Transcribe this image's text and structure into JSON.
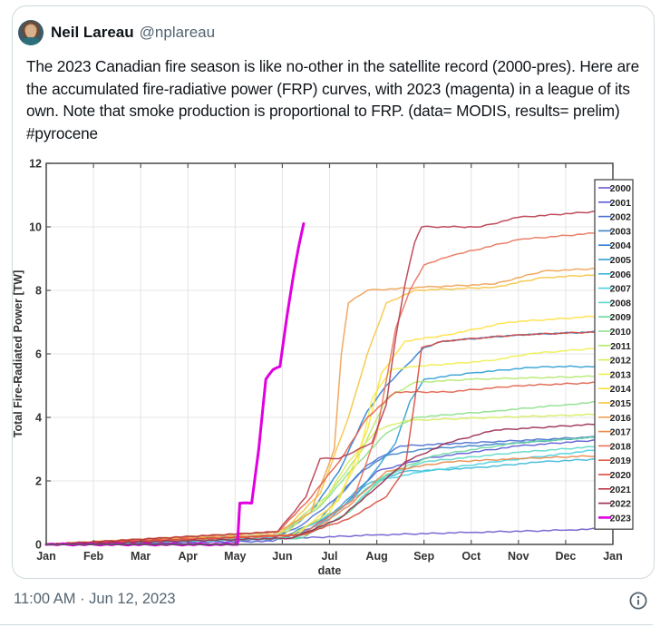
{
  "tweet": {
    "author_name": "Neil Lareau",
    "author_handle": "@nplareau",
    "text": "The 2023 Canadian fire season is like no-other in the satellite record (2000-pres). Here are the accumulated fire-radiative power (FRP) curves, with 2023 (magenta) in a league of its own. Note that smoke production is proportional to FRP. (data= MODIS, results= prelim) #pyrocene",
    "timestamp": "11:00 AM · Jun 12, 2023",
    "info_icon": "info-icon"
  },
  "chart_data": {
    "type": "line",
    "title": "",
    "xlabel": "date",
    "ylabel": "Total Fire-Radiated Power [TW]",
    "x_ticks": [
      "Jan",
      "Feb",
      "Mar",
      "Apr",
      "May",
      "Jun",
      "Jul",
      "Aug",
      "Sep",
      "Oct",
      "Nov",
      "Dec",
      "Jan"
    ],
    "y_ticks": [
      0,
      2,
      4,
      6,
      8,
      10,
      12
    ],
    "ylim": [
      0,
      12
    ],
    "xlim_months": [
      0,
      12
    ],
    "grid": true,
    "legend_position": "right",
    "x_unit": "month (fractional, Jan=0)",
    "series": [
      {
        "name": "2000",
        "color": "#6a5acd",
        "points": [
          [
            0,
            0
          ],
          [
            4.5,
            0.15
          ],
          [
            7,
            0.3
          ],
          [
            9,
            0.38
          ],
          [
            11,
            0.45
          ],
          [
            11.8,
            0.5
          ]
        ]
      },
      {
        "name": "2001",
        "color": "#5b5bd6",
        "points": [
          [
            0,
            0
          ],
          [
            4.8,
            0.1
          ],
          [
            5.6,
            0.5
          ],
          [
            6.3,
            1.2
          ],
          [
            7.0,
            2.3
          ],
          [
            8,
            2.7
          ],
          [
            10,
            3.1
          ],
          [
            11.8,
            3.3
          ]
        ]
      },
      {
        "name": "2002",
        "color": "#4a6fd0",
        "points": [
          [
            0,
            0
          ],
          [
            4.8,
            0.2
          ],
          [
            5.4,
            0.6
          ],
          [
            6.1,
            1.4
          ],
          [
            6.8,
            2.5
          ],
          [
            7.5,
            3.1
          ],
          [
            9,
            3.2
          ],
          [
            11.8,
            3.4
          ]
        ]
      },
      {
        "name": "2003",
        "color": "#3b82c4",
        "points": [
          [
            0,
            0
          ],
          [
            5,
            0.2
          ],
          [
            5.8,
            0.8
          ],
          [
            6.6,
            2.2
          ],
          [
            7.2,
            2.8
          ],
          [
            8,
            3.0
          ],
          [
            10,
            3.2
          ],
          [
            11.8,
            3.4
          ]
        ]
      },
      {
        "name": "2004",
        "color": "#2e7fd6",
        "points": [
          [
            0,
            0
          ],
          [
            5,
            0.3
          ],
          [
            5.6,
            1.0
          ],
          [
            6.2,
            2.3
          ],
          [
            6.8,
            4.2
          ],
          [
            7.2,
            5.0
          ],
          [
            7.6,
            5.6
          ],
          [
            8.0,
            6.2
          ],
          [
            8.4,
            6.4
          ],
          [
            10,
            6.6
          ],
          [
            11.8,
            6.7
          ]
        ]
      },
      {
        "name": "2005",
        "color": "#2f9fd4",
        "points": [
          [
            0,
            0
          ],
          [
            5,
            0.2
          ],
          [
            6,
            0.9
          ],
          [
            6.8,
            2.0
          ],
          [
            7.4,
            3.2
          ],
          [
            7.7,
            4.5
          ],
          [
            8.0,
            5.2
          ],
          [
            9,
            5.4
          ],
          [
            10.5,
            5.6
          ],
          [
            11.8,
            5.6
          ]
        ]
      },
      {
        "name": "2006",
        "color": "#3cb8d8",
        "points": [
          [
            0,
            0
          ],
          [
            5.2,
            0.2
          ],
          [
            6,
            0.8
          ],
          [
            6.8,
            1.9
          ],
          [
            7.6,
            2.3
          ],
          [
            9,
            2.4
          ],
          [
            10.5,
            2.6
          ],
          [
            11.8,
            2.7
          ]
        ]
      },
      {
        "name": "2007",
        "color": "#48d0e0",
        "points": [
          [
            0,
            0
          ],
          [
            5.2,
            0.3
          ],
          [
            6.2,
            1.1
          ],
          [
            7,
            2.0
          ],
          [
            8,
            2.3
          ],
          [
            9.5,
            2.6
          ],
          [
            11.8,
            3.0
          ]
        ]
      },
      {
        "name": "2008",
        "color": "#5ad8c8",
        "points": [
          [
            0,
            0
          ],
          [
            5.3,
            0.2
          ],
          [
            6.3,
            0.9
          ],
          [
            7.1,
            2.1
          ],
          [
            8,
            2.6
          ],
          [
            10,
            2.9
          ],
          [
            11.8,
            3.1
          ]
        ]
      },
      {
        "name": "2009",
        "color": "#6cd8a0",
        "points": [
          [
            0,
            0
          ],
          [
            5.4,
            0.2
          ],
          [
            6.4,
            1.0
          ],
          [
            7.2,
            2.2
          ],
          [
            8.2,
            2.8
          ],
          [
            10,
            3.2
          ],
          [
            11.8,
            3.4
          ]
        ]
      },
      {
        "name": "2010",
        "color": "#8de08a",
        "points": [
          [
            0,
            0
          ],
          [
            4.9,
            0.3
          ],
          [
            5.8,
            1.2
          ],
          [
            6.5,
            2.4
          ],
          [
            7.2,
            3.5
          ],
          [
            7.8,
            4.0
          ],
          [
            9.5,
            4.2
          ],
          [
            11,
            4.4
          ],
          [
            11.8,
            4.5
          ]
        ]
      },
      {
        "name": "2011",
        "color": "#b4e86e",
        "points": [
          [
            0,
            0
          ],
          [
            5,
            0.4
          ],
          [
            6,
            1.6
          ],
          [
            6.7,
            3.0
          ],
          [
            7.2,
            4.6
          ],
          [
            7.8,
            5.1
          ],
          [
            9,
            5.2
          ],
          [
            11.8,
            5.3
          ]
        ]
      },
      {
        "name": "2012",
        "color": "#d8ec60",
        "points": [
          [
            0,
            0
          ],
          [
            5.1,
            0.4
          ],
          [
            5.9,
            1.4
          ],
          [
            6.4,
            2.6
          ],
          [
            7,
            3.6
          ],
          [
            7.6,
            3.9
          ],
          [
            9.5,
            4.0
          ],
          [
            11.8,
            4.1
          ]
        ]
      },
      {
        "name": "2013",
        "color": "#f0ee50",
        "points": [
          [
            0,
            0
          ],
          [
            5.2,
            0.3
          ],
          [
            6,
            1.0
          ],
          [
            6.6,
            2.6
          ],
          [
            6.9,
            4.6
          ],
          [
            7.3,
            5.5
          ],
          [
            7.8,
            5.6
          ],
          [
            9.5,
            5.8
          ],
          [
            10.2,
            6.0
          ],
          [
            11.8,
            6.2
          ]
        ]
      },
      {
        "name": "2014",
        "color": "#ffe040",
        "points": [
          [
            0,
            0
          ],
          [
            5.3,
            0.3
          ],
          [
            6.2,
            1.4
          ],
          [
            6.8,
            3.6
          ],
          [
            7.1,
            5.4
          ],
          [
            7.6,
            6.4
          ],
          [
            8.5,
            6.6
          ],
          [
            9.8,
            7.0
          ],
          [
            11.8,
            7.2
          ]
        ]
      },
      {
        "name": "2015",
        "color": "#f5c542",
        "points": [
          [
            0,
            0
          ],
          [
            5.0,
            0.4
          ],
          [
            5.8,
            1.6
          ],
          [
            6.4,
            4.0
          ],
          [
            6.8,
            6.0
          ],
          [
            7.2,
            7.6
          ],
          [
            7.8,
            8.0
          ],
          [
            9.5,
            8.1
          ],
          [
            10.5,
            8.4
          ],
          [
            11.8,
            8.5
          ]
        ]
      },
      {
        "name": "2016",
        "color": "#f0a050",
        "points": [
          [
            0,
            0
          ],
          [
            4.8,
            0.3
          ],
          [
            5.6,
            1.0
          ],
          [
            6.1,
            3.0
          ],
          [
            6.25,
            6.0
          ],
          [
            6.4,
            7.6
          ],
          [
            6.8,
            8.0
          ],
          [
            8.0,
            8.1
          ],
          [
            9.5,
            8.2
          ],
          [
            10.5,
            8.6
          ],
          [
            11.8,
            8.7
          ]
        ]
      },
      {
        "name": "2017",
        "color": "#e88a4a",
        "points": [
          [
            0,
            0
          ],
          [
            5.5,
            0.3
          ],
          [
            6.4,
            1.2
          ],
          [
            7.2,
            2.3
          ],
          [
            8.5,
            2.6
          ],
          [
            10,
            2.7
          ],
          [
            11.8,
            2.8
          ]
        ]
      },
      {
        "name": "2018",
        "color": "#e8735a",
        "points": [
          [
            0,
            0
          ],
          [
            5.4,
            0.3
          ],
          [
            6.5,
            1.4
          ],
          [
            7.0,
            3.5
          ],
          [
            7.4,
            6.8
          ],
          [
            7.7,
            8.0
          ],
          [
            8.0,
            8.8
          ],
          [
            8.6,
            9.1
          ],
          [
            10,
            9.6
          ],
          [
            11.6,
            9.8
          ]
        ]
      },
      {
        "name": "2019",
        "color": "#e0604a",
        "points": [
          [
            0,
            0
          ],
          [
            4.9,
            0.4
          ],
          [
            5.5,
            1.3
          ],
          [
            6.2,
            2.6
          ],
          [
            6.8,
            4.0
          ],
          [
            7.4,
            4.8
          ],
          [
            8.5,
            4.8
          ],
          [
            10,
            5.0
          ],
          [
            11.8,
            5.1
          ]
        ]
      },
      {
        "name": "2020",
        "color": "#d84a3c",
        "points": [
          [
            0,
            0
          ],
          [
            5.4,
            0.3
          ],
          [
            6.4,
            0.8
          ],
          [
            7.2,
            1.5
          ],
          [
            7.6,
            2.4
          ],
          [
            7.8,
            4.5
          ],
          [
            7.95,
            6.2
          ],
          [
            8.4,
            6.4
          ],
          [
            10,
            6.6
          ],
          [
            11.8,
            6.7
          ]
        ]
      },
      {
        "name": "2021",
        "color": "#b83a4a",
        "points": [
          [
            0,
            0
          ],
          [
            4.9,
            0.4
          ],
          [
            5.5,
            1.5
          ],
          [
            5.8,
            2.7
          ],
          [
            6.2,
            2.7
          ],
          [
            6.5,
            2.9
          ],
          [
            6.9,
            3.2
          ],
          [
            7.2,
            4.4
          ],
          [
            7.4,
            6.5
          ],
          [
            7.6,
            8.2
          ],
          [
            7.8,
            9.5
          ],
          [
            7.95,
            10.0
          ],
          [
            9.2,
            10.0
          ],
          [
            10,
            10.3
          ],
          [
            11.8,
            10.5
          ]
        ]
      },
      {
        "name": "2022",
        "color": "#9a2a52",
        "points": [
          [
            0,
            0
          ],
          [
            5.2,
            0.2
          ],
          [
            6.2,
            0.8
          ],
          [
            7.0,
            1.8
          ],
          [
            7.6,
            2.6
          ],
          [
            8.5,
            3.2
          ],
          [
            9.5,
            3.6
          ],
          [
            11.8,
            3.8
          ]
        ]
      },
      {
        "name": "2023",
        "color": "#e000e0",
        "points": [
          [
            0,
            0
          ],
          [
            4.05,
            0
          ],
          [
            4.1,
            1.3
          ],
          [
            4.35,
            1.3
          ],
          [
            4.5,
            3.0
          ],
          [
            4.65,
            5.2
          ],
          [
            4.8,
            5.5
          ],
          [
            4.95,
            5.6
          ],
          [
            5.1,
            7.2
          ],
          [
            5.25,
            8.6
          ],
          [
            5.35,
            9.4
          ],
          [
            5.45,
            10.1
          ]
        ]
      }
    ]
  }
}
